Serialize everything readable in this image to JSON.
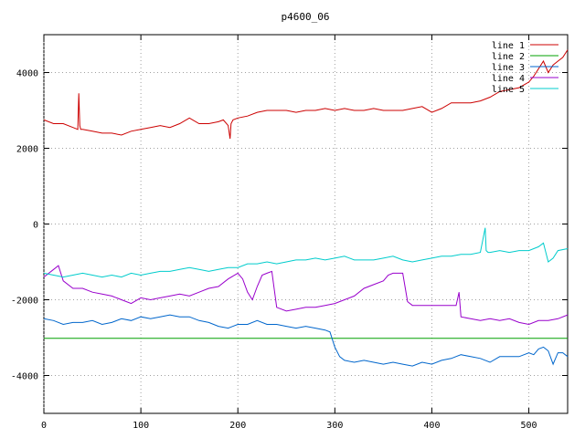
{
  "chart_data": {
    "type": "line",
    "title": "p4600_06",
    "xlabel": "",
    "ylabel": "",
    "xlim": [
      0,
      540
    ],
    "ylim": [
      -5000,
      5000
    ],
    "xticks": [
      0,
      100,
      200,
      300,
      400,
      500
    ],
    "yticks": [
      -4000,
      -2000,
      0,
      2000,
      4000
    ],
    "grid": true,
    "legend_position": "top-right",
    "series": [
      {
        "name": "line 1",
        "color": "#cc0000",
        "x": [
          0,
          10,
          20,
          30,
          35,
          36,
          37,
          38,
          40,
          50,
          60,
          70,
          80,
          90,
          100,
          110,
          120,
          130,
          140,
          150,
          160,
          170,
          180,
          185,
          190,
          192,
          193,
          195,
          200,
          210,
          220,
          230,
          240,
          250,
          260,
          270,
          280,
          290,
          300,
          310,
          320,
          330,
          340,
          350,
          360,
          370,
          380,
          390,
          400,
          410,
          420,
          430,
          440,
          450,
          460,
          470,
          480,
          490,
          500,
          505,
          510,
          515,
          520,
          525,
          530,
          535,
          540
        ],
        "y": [
          2750,
          2650,
          2650,
          2550,
          2500,
          3450,
          2600,
          2500,
          2500,
          2450,
          2400,
          2400,
          2350,
          2450,
          2500,
          2550,
          2600,
          2550,
          2650,
          2800,
          2650,
          2650,
          2700,
          2750,
          2600,
          2250,
          2650,
          2750,
          2800,
          2850,
          2950,
          3000,
          3000,
          3000,
          2950,
          3000,
          3000,
          3050,
          3000,
          3050,
          3000,
          3000,
          3050,
          3000,
          3000,
          3000,
          3050,
          3100,
          2950,
          3050,
          3200,
          3200,
          3200,
          3250,
          3350,
          3500,
          3550,
          3600,
          3750,
          3900,
          4100,
          4300,
          4000,
          4200,
          4300,
          4400,
          4600
        ]
      },
      {
        "name": "line 2",
        "color": "#00a000",
        "x": [
          0,
          540
        ],
        "y": [
          -3020,
          -3020
        ]
      },
      {
        "name": "line 3",
        "color": "#0066cc",
        "x": [
          0,
          10,
          20,
          30,
          40,
          50,
          60,
          70,
          80,
          90,
          100,
          110,
          120,
          130,
          140,
          150,
          160,
          170,
          180,
          190,
          200,
          210,
          220,
          230,
          240,
          250,
          260,
          270,
          280,
          290,
          295,
          300,
          305,
          310,
          320,
          330,
          340,
          350,
          360,
          370,
          380,
          390,
          400,
          410,
          420,
          430,
          440,
          450,
          460,
          470,
          480,
          490,
          500,
          505,
          510,
          515,
          520,
          525,
          530,
          535,
          540
        ],
        "y": [
          -2500,
          -2550,
          -2650,
          -2600,
          -2600,
          -2550,
          -2650,
          -2600,
          -2500,
          -2550,
          -2450,
          -2500,
          -2450,
          -2400,
          -2450,
          -2450,
          -2550,
          -2600,
          -2700,
          -2750,
          -2650,
          -2650,
          -2550,
          -2650,
          -2650,
          -2700,
          -2750,
          -2700,
          -2750,
          -2800,
          -2850,
          -3250,
          -3500,
          -3600,
          -3650,
          -3600,
          -3650,
          -3700,
          -3650,
          -3700,
          -3750,
          -3650,
          -3700,
          -3600,
          -3550,
          -3450,
          -3500,
          -3550,
          -3650,
          -3500,
          -3500,
          -3500,
          -3400,
          -3450,
          -3300,
          -3250,
          -3350,
          -3700,
          -3400,
          -3400,
          -3500
        ]
      },
      {
        "name": "line 4",
        "color": "#9900cc",
        "x": [
          0,
          10,
          15,
          20,
          30,
          40,
          50,
          60,
          70,
          80,
          90,
          100,
          110,
          120,
          130,
          140,
          150,
          160,
          170,
          180,
          190,
          200,
          205,
          210,
          215,
          220,
          225,
          230,
          235,
          240,
          250,
          260,
          270,
          280,
          290,
          300,
          310,
          320,
          330,
          340,
          350,
          355,
          360,
          365,
          370,
          375,
          380,
          390,
          400,
          410,
          420,
          425,
          428,
          430,
          440,
          450,
          460,
          470,
          480,
          490,
          500,
          510,
          520,
          530,
          540
        ],
        "y": [
          -1400,
          -1200,
          -1100,
          -1500,
          -1700,
          -1700,
          -1800,
          -1850,
          -1900,
          -2000,
          -2100,
          -1950,
          -2000,
          -1950,
          -1900,
          -1850,
          -1900,
          -1800,
          -1700,
          -1650,
          -1450,
          -1300,
          -1450,
          -1800,
          -2000,
          -1650,
          -1350,
          -1300,
          -1250,
          -2200,
          -2300,
          -2250,
          -2200,
          -2200,
          -2150,
          -2100,
          -2000,
          -1900,
          -1700,
          -1600,
          -1500,
          -1350,
          -1300,
          -1300,
          -1300,
          -2050,
          -2150,
          -2150,
          -2150,
          -2150,
          -2150,
          -2150,
          -1800,
          -2450,
          -2500,
          -2550,
          -2500,
          -2550,
          -2500,
          -2600,
          -2650,
          -2550,
          -2550,
          -2500,
          -2400
        ]
      },
      {
        "name": "line 5",
        "color": "#00cccc",
        "x": [
          0,
          10,
          20,
          30,
          40,
          50,
          60,
          70,
          80,
          90,
          100,
          110,
          120,
          130,
          140,
          150,
          160,
          170,
          180,
          190,
          200,
          210,
          220,
          230,
          240,
          250,
          260,
          270,
          280,
          290,
          300,
          310,
          320,
          330,
          340,
          350,
          360,
          370,
          380,
          390,
          400,
          410,
          420,
          430,
          440,
          450,
          455,
          456,
          458,
          460,
          470,
          480,
          490,
          500,
          510,
          515,
          520,
          525,
          530,
          540
        ],
        "y": [
          -1300,
          -1350,
          -1400,
          -1350,
          -1300,
          -1350,
          -1400,
          -1350,
          -1400,
          -1300,
          -1350,
          -1300,
          -1250,
          -1250,
          -1200,
          -1150,
          -1200,
          -1250,
          -1200,
          -1150,
          -1150,
          -1050,
          -1050,
          -1000,
          -1050,
          -1000,
          -950,
          -950,
          -900,
          -950,
          -900,
          -850,
          -950,
          -950,
          -950,
          -900,
          -850,
          -950,
          -1000,
          -950,
          -900,
          -850,
          -850,
          -800,
          -800,
          -750,
          -100,
          -700,
          -750,
          -750,
          -700,
          -750,
          -700,
          -700,
          -600,
          -500,
          -1000,
          -900,
          -700,
          -650
        ]
      }
    ]
  }
}
